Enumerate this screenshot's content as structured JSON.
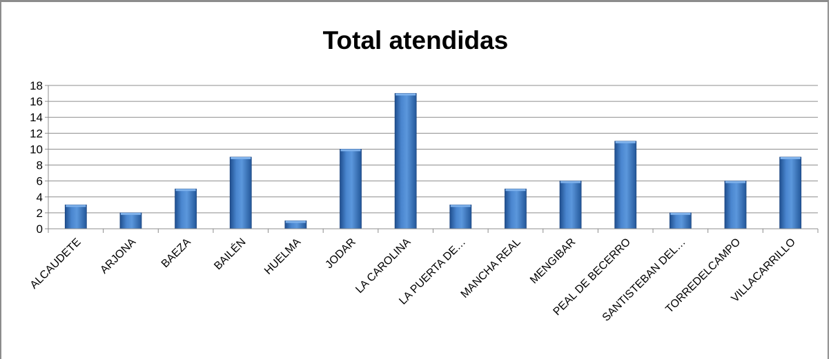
{
  "chart_data": {
    "type": "bar",
    "title": "Total atendidas",
    "xlabel": "",
    "ylabel": "",
    "ylim": [
      0,
      18
    ],
    "yticks": [
      0,
      2,
      4,
      6,
      8,
      10,
      12,
      14,
      16,
      18
    ],
    "grid": true,
    "categories": [
      "ALCAUDETE",
      "ARJONA",
      "BAEZA",
      "BAILÉN",
      "HUELMA",
      "JODAR",
      "LA CAROLINA",
      "LA PUERTA DE…",
      "MANCHA REAL",
      "MENGIBAR",
      "PEAL DE BECERRO",
      "SANTISTEBAN DEL…",
      "TORREDELCAMPO",
      "VILLACARRILLO"
    ],
    "values": [
      3,
      2,
      5,
      9,
      1,
      10,
      17,
      3,
      5,
      6,
      11,
      2,
      6,
      9
    ],
    "bar_color": "#3a6fb4"
  }
}
